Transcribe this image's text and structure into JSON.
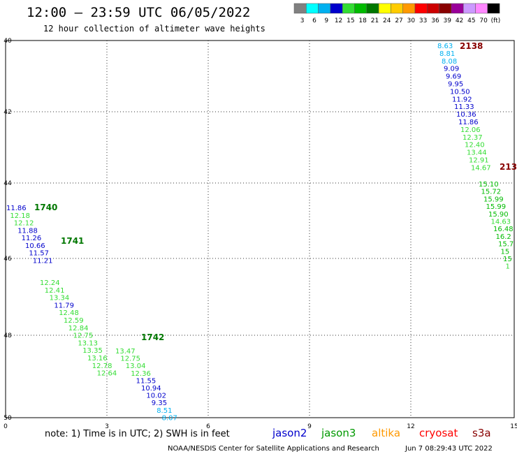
{
  "title": "12:00 – 23:59 UTC 06/05/2022",
  "subtitle": "12 hour collection of altimeter wave heights",
  "color_scale": {
    "labels": [
      "3",
      "6",
      "9",
      "12",
      "15",
      "18",
      "21",
      "24",
      "27",
      "30",
      "33",
      "36",
      "39",
      "42",
      "45",
      "70",
      "(ft)"
    ],
    "colors": [
      "#808080",
      "#00ffff",
      "#00b0f0",
      "#0000cc",
      "#33dd33",
      "#00bb00",
      "#007700",
      "#ffff00",
      "#ffcc00",
      "#ff9900",
      "#ff0000",
      "#cc0000",
      "#880000",
      "#990099",
      "#cc99ff",
      "#ff88ff",
      "#000000"
    ]
  },
  "axes": {
    "lat_labels": [
      "40",
      "42",
      "44",
      "46",
      "48",
      "50"
    ],
    "lon_labels": [
      "0",
      "3",
      "6",
      "9",
      "12",
      "15"
    ]
  },
  "tracks": [
    {
      "pass_label": "1740",
      "pass_color": "#007700",
      "points": [
        {
          "v": "11.86",
          "c": "#0000cc"
        },
        {
          "v": "12.18",
          "c": "#33dd33"
        },
        {
          "v": "12.12",
          "c": "#33dd33"
        },
        {
          "v": "11.88",
          "c": "#0000cc"
        },
        {
          "v": "11.26",
          "c": "#0000cc"
        },
        {
          "v": "10.66",
          "c": "#0000cc"
        },
        {
          "v": "11.57",
          "c": "#0000cc"
        },
        {
          "v": "11.21",
          "c": "#0000cc"
        }
      ]
    },
    {
      "pass_label": "1741",
      "pass_color": "#007700",
      "points": [
        {
          "v": "12.24",
          "c": "#33dd33"
        },
        {
          "v": "12.41",
          "c": "#33dd33"
        },
        {
          "v": "13.34",
          "c": "#33dd33"
        },
        {
          "v": "11.79",
          "c": "#0000cc"
        },
        {
          "v": "12.48",
          "c": "#33dd33"
        },
        {
          "v": "12.59",
          "c": "#33dd33"
        },
        {
          "v": "12.84",
          "c": "#33dd33"
        },
        {
          "v": "12.75",
          "c": "#33dd33"
        },
        {
          "v": "13.13",
          "c": "#33dd33"
        },
        {
          "v": "13.35",
          "c": "#33dd33"
        },
        {
          "v": "13.16",
          "c": "#33dd33"
        },
        {
          "v": "12.78",
          "c": "#33dd33"
        },
        {
          "v": "12.64",
          "c": "#33dd33"
        }
      ]
    },
    {
      "pass_label": "1742",
      "pass_color": "#007700",
      "points": [
        {
          "v": "13.47",
          "c": "#33dd33"
        },
        {
          "v": "12.75",
          "c": "#33dd33"
        },
        {
          "v": "13.04",
          "c": "#33dd33"
        },
        {
          "v": "12.36",
          "c": "#33dd33"
        },
        {
          "v": "11.55",
          "c": "#0000cc"
        },
        {
          "v": "10.94",
          "c": "#0000cc"
        },
        {
          "v": "10.02",
          "c": "#0000cc"
        },
        {
          "v": "9.35",
          "c": "#0000cc"
        },
        {
          "v": "8.51",
          "c": "#00b0f0"
        },
        {
          "v": "8.07",
          "c": "#00b0f0"
        }
      ]
    },
    {
      "pass_label": "2138",
      "pass_color": "#880000",
      "points": [
        {
          "v": "8.63",
          "c": "#00b0f0"
        },
        {
          "v": "8.81",
          "c": "#00b0f0"
        },
        {
          "v": "8.08",
          "c": "#00b0f0"
        },
        {
          "v": "9.09",
          "c": "#0000cc"
        },
        {
          "v": "9.69",
          "c": "#0000cc"
        },
        {
          "v": "9.95",
          "c": "#0000cc"
        },
        {
          "v": "10.50",
          "c": "#0000cc"
        },
        {
          "v": "11.92",
          "c": "#0000cc"
        },
        {
          "v": "11.33",
          "c": "#0000cc"
        },
        {
          "v": "10.36",
          "c": "#0000cc"
        },
        {
          "v": "11.86",
          "c": "#0000cc"
        },
        {
          "v": "12.06",
          "c": "#33dd33"
        },
        {
          "v": "12.37",
          "c": "#33dd33"
        },
        {
          "v": "12.40",
          "c": "#33dd33"
        },
        {
          "v": "13.44",
          "c": "#33dd33"
        },
        {
          "v": "12.91",
          "c": "#33dd33"
        },
        {
          "v": "14.67",
          "c": "#33dd33"
        }
      ]
    },
    {
      "pass_label": "213",
      "pass_color": "#880000",
      "points": [
        {
          "v": "15.10",
          "c": "#00bb00"
        },
        {
          "v": "15.72",
          "c": "#00bb00"
        },
        {
          "v": "15.99",
          "c": "#00bb00"
        },
        {
          "v": "15.99",
          "c": "#00bb00"
        },
        {
          "v": "15.90",
          "c": "#00bb00"
        },
        {
          "v": "14.63",
          "c": "#33dd33"
        },
        {
          "v": "16.48",
          "c": "#00bb00"
        },
        {
          "v": "16.2",
          "c": "#00bb00"
        },
        {
          "v": "15.7",
          "c": "#00bb00"
        },
        {
          "v": "15",
          "c": "#00bb00"
        },
        {
          "v": "15",
          "c": "#00bb00"
        },
        {
          "v": "1",
          "c": "#33dd33"
        }
      ]
    }
  ],
  "note": "note:  1) Time is in UTC;  2) SWH is in feet",
  "legend": [
    {
      "name": "jason2",
      "color": "#0000cc"
    },
    {
      "name": "jason3",
      "color": "#009900"
    },
    {
      "name": "altika",
      "color": "#ff9900"
    },
    {
      "name": "cryosat",
      "color": "#ff0000"
    },
    {
      "name": "s3a",
      "color": "#880000"
    }
  ],
  "credit": "NOAA/NESDIS Center for Satellite Applications and Research",
  "timestamp": "Jun  7 08:29:43 UTC 2022"
}
